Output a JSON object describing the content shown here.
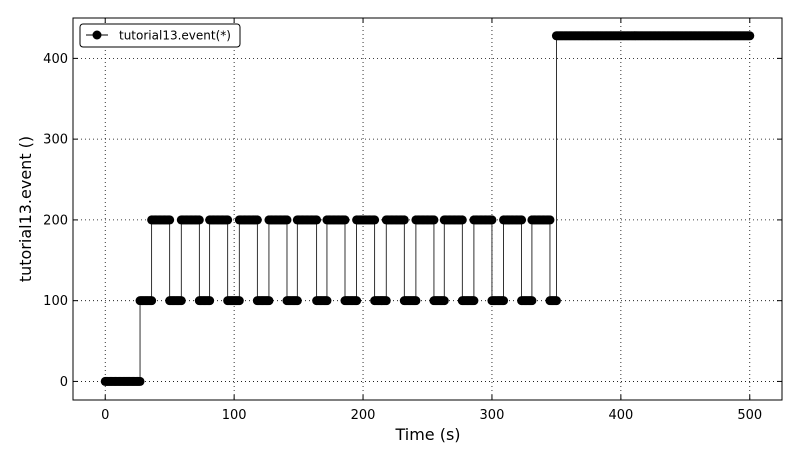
{
  "chart_data": {
    "type": "line",
    "xlabel": "Time (s)",
    "ylabel": "tutorial13.event ()",
    "xlim": [
      -25,
      525
    ],
    "ylim": [
      -23,
      450
    ],
    "x_ticks": [
      0,
      100,
      200,
      300,
      400,
      500
    ],
    "y_ticks": [
      0,
      100,
      200,
      300,
      400
    ],
    "grid": true,
    "legend_position": "top-left",
    "step": true,
    "series": [
      {
        "name": "tutorial13.event(*)",
        "color": "#000000",
        "marker": "circle",
        "segments": [
          {
            "x_start": 0,
            "x_end": 27,
            "y": 0
          },
          {
            "x_start": 27,
            "x_end": 36,
            "y": 100
          },
          {
            "x_start": 36,
            "x_end": 50,
            "y": 200
          },
          {
            "x_start": 50,
            "x_end": 59,
            "y": 100
          },
          {
            "x_start": 59,
            "x_end": 73,
            "y": 200
          },
          {
            "x_start": 73,
            "x_end": 81,
            "y": 100
          },
          {
            "x_start": 81,
            "x_end": 95,
            "y": 200
          },
          {
            "x_start": 95,
            "x_end": 104,
            "y": 100
          },
          {
            "x_start": 104,
            "x_end": 118,
            "y": 200
          },
          {
            "x_start": 118,
            "x_end": 127,
            "y": 100
          },
          {
            "x_start": 127,
            "x_end": 141,
            "y": 200
          },
          {
            "x_start": 141,
            "x_end": 149,
            "y": 100
          },
          {
            "x_start": 149,
            "x_end": 164,
            "y": 200
          },
          {
            "x_start": 164,
            "x_end": 172,
            "y": 100
          },
          {
            "x_start": 172,
            "x_end": 186,
            "y": 200
          },
          {
            "x_start": 186,
            "x_end": 195,
            "y": 100
          },
          {
            "x_start": 195,
            "x_end": 209,
            "y": 200
          },
          {
            "x_start": 209,
            "x_end": 218,
            "y": 100
          },
          {
            "x_start": 218,
            "x_end": 232,
            "y": 200
          },
          {
            "x_start": 232,
            "x_end": 241,
            "y": 100
          },
          {
            "x_start": 241,
            "x_end": 255,
            "y": 200
          },
          {
            "x_start": 255,
            "x_end": 263,
            "y": 100
          },
          {
            "x_start": 263,
            "x_end": 277,
            "y": 200
          },
          {
            "x_start": 277,
            "x_end": 286,
            "y": 100
          },
          {
            "x_start": 286,
            "x_end": 300,
            "y": 200
          },
          {
            "x_start": 300,
            "x_end": 309,
            "y": 100
          },
          {
            "x_start": 309,
            "x_end": 323,
            "y": 200
          },
          {
            "x_start": 323,
            "x_end": 331,
            "y": 100
          },
          {
            "x_start": 331,
            "x_end": 345,
            "y": 200
          },
          {
            "x_start": 345,
            "x_end": 350,
            "y": 100
          },
          {
            "x_start": 350,
            "x_end": 500,
            "y": 428
          }
        ]
      }
    ]
  }
}
